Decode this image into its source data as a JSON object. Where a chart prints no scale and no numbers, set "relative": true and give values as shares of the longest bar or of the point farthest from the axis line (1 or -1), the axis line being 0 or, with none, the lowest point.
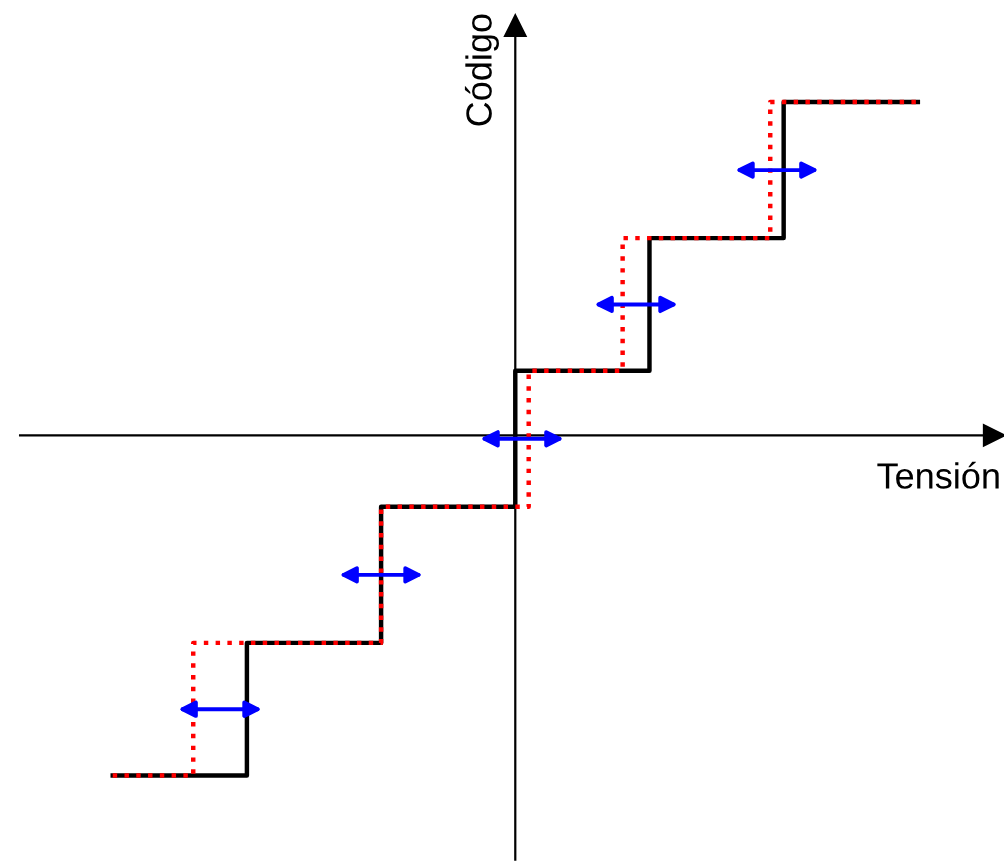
{
  "chart_data": {
    "type": "step",
    "relative": true,
    "xlabel": "Tensión",
    "ylabel": "Código",
    "marker": "none",
    "categories": [
      null,
      null,
      null,
      null,
      null,
      null,
      null,
      null,
      null,
      null,
      null,
      null,
      null,
      null,
      null,
      null,
      null,
      null,
      null,
      null,
      null,
      null,
      null,
      null,
      null,
      null,
      null,
      null,
      null,
      null,
      null,
      null,
      null,
      null,
      null,
      null,
      null,
      null,
      null,
      null,
      null,
      null,
      null,
      null,
      null,
      null,
      null,
      null,
      null,
      null,
      null,
      null,
      null,
      null,
      null,
      null,
      null,
      null,
      null,
      null,
      null
    ],
    "series": [
      {
        "color": "#ff0000",
        "line_style": "dotted",
        "values": [
          -1,
          -1,
          -1,
          -1,
          -1,
          -1,
          -0.61,
          -0.61,
          -0.61,
          -0.61,
          -0.61,
          -0.61,
          -0.61,
          -0.61,
          -0.61,
          -0.61,
          -0.61,
          -0.61,
          -0.61,
          -0.61,
          -0.21,
          -0.21,
          -0.21,
          -0.21,
          -0.21,
          -0.21,
          -0.21,
          -0.21,
          -0.21,
          -0.21,
          -0.21,
          0.19,
          0.19,
          0.19,
          0.19,
          0.19,
          0.19,
          0.19,
          0.58,
          0.58,
          0.58,
          0.58,
          0.58,
          0.58,
          0.58,
          0.58,
          0.58,
          0.58,
          0.58,
          0.98,
          0.98,
          0.98,
          0.98,
          0.98,
          0.98,
          0.98,
          0.98,
          0.98,
          0.98,
          0.98,
          0.98
        ]
      },
      {
        "color": "#000000",
        "line_style": "solid",
        "values": [
          -1,
          -1,
          -1,
          -1,
          -1,
          -1,
          -1,
          -1,
          -1,
          -1,
          -0.61,
          -0.61,
          -0.61,
          -0.61,
          -0.61,
          -0.61,
          -0.61,
          -0.61,
          -0.61,
          -0.61,
          -0.21,
          -0.21,
          -0.21,
          -0.21,
          -0.21,
          -0.21,
          -0.21,
          -0.21,
          -0.21,
          -0.21,
          0.19,
          0.19,
          0.19,
          0.19,
          0.19,
          0.19,
          0.19,
          0.19,
          0.19,
          0.19,
          0.58,
          0.58,
          0.58,
          0.58,
          0.58,
          0.58,
          0.58,
          0.58,
          0.58,
          0.58,
          0.98,
          0.98,
          0.98,
          0.98,
          0.98,
          0.98,
          0.98,
          0.98,
          0.98,
          0.98,
          0.98
        ]
      }
    ]
  }
}
